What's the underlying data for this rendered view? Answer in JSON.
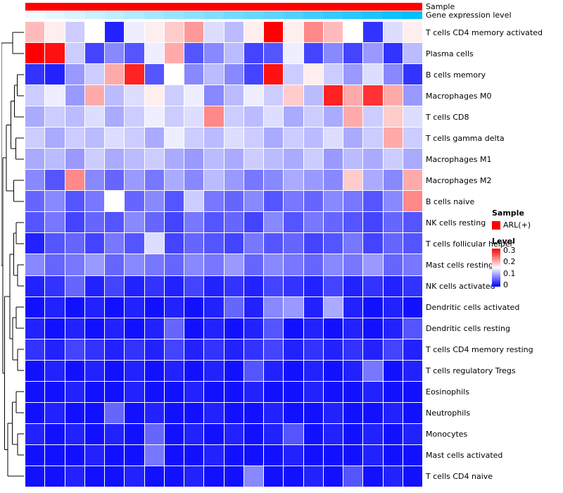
{
  "annotations": {
    "sample": {
      "label": "Sample",
      "value": "ARL(+)",
      "color": "#FE0000",
      "cells": 20
    },
    "expression": {
      "label": "Gene expression level",
      "low_color": "#F2FAFF",
      "high_color": "#00BFFF",
      "values": [
        0,
        0.05,
        0.1,
        0.16,
        0.21,
        0.26,
        0.32,
        0.37,
        0.42,
        0.47,
        0.53,
        0.58,
        0.63,
        0.68,
        0.74,
        0.79,
        0.84,
        0.89,
        0.95,
        1
      ]
    }
  },
  "chart_data": {
    "type": "heatmap",
    "title": "",
    "columns": 20,
    "rows": [
      "T cells CD4 memory activated",
      "Plasma cells",
      "B cells memory",
      "Macrophages M0",
      "T cells CD8",
      "T cells gamma delta",
      "Macrophages M1",
      "Macrophages M2",
      "B cells naive",
      "NK cells resting",
      "T cells follicular helper",
      "Mast cells resting",
      "NK cells activated",
      "Dendritic cells activated",
      "Dendritic cells resting",
      "T cells CD4 memory resting",
      "T cells regulatory  Tregs",
      "Eosinophils",
      "Neutrophils",
      "Monocytes",
      "Mast cells activated",
      "T cells CD4 naive"
    ],
    "values": [
      [
        0.19,
        0.16,
        0.12,
        0.15,
        0.02,
        0.14,
        0.16,
        0.18,
        0.21,
        0.13,
        0.11,
        0.16,
        0.3,
        0.16,
        0.22,
        0.19,
        0.15,
        0.03,
        0.13,
        0.16
      ],
      [
        0.3,
        0.29,
        0.12,
        0.04,
        0.08,
        0.05,
        0.14,
        0.2,
        0.05,
        0.08,
        0.11,
        0.04,
        0.05,
        0.14,
        0.04,
        0.08,
        0.04,
        0.09,
        0.03,
        0.11
      ],
      [
        0.03,
        0.02,
        0.09,
        0.12,
        0.2,
        0.28,
        0.05,
        0.15,
        0.08,
        0.11,
        0.08,
        0.04,
        0.29,
        0.12,
        0.16,
        0.12,
        0.09,
        0.13,
        0.08,
        0.03
      ],
      [
        0.12,
        0.14,
        0.09,
        0.2,
        0.11,
        0.13,
        0.16,
        0.12,
        0.14,
        0.08,
        0.11,
        0.14,
        0.12,
        0.18,
        0.11,
        0.28,
        0.2,
        0.27,
        0.2,
        0.09
      ],
      [
        0.1,
        0.12,
        0.11,
        0.13,
        0.1,
        0.12,
        0.14,
        0.12,
        0.13,
        0.22,
        0.12,
        0.11,
        0.13,
        0.1,
        0.12,
        0.1,
        0.2,
        0.12,
        0.18,
        0.13
      ],
      [
        0.12,
        0.1,
        0.12,
        0.11,
        0.13,
        0.12,
        0.1,
        0.14,
        0.12,
        0.11,
        0.13,
        0.12,
        0.1,
        0.12,
        0.11,
        0.13,
        0.1,
        0.12,
        0.2,
        0.12
      ],
      [
        0.1,
        0.11,
        0.09,
        0.12,
        0.1,
        0.11,
        0.12,
        0.1,
        0.09,
        0.11,
        0.1,
        0.12,
        0.11,
        0.1,
        0.12,
        0.09,
        0.11,
        0.1,
        0.12,
        0.1
      ],
      [
        0.08,
        0.05,
        0.22,
        0.08,
        0.06,
        0.09,
        0.07,
        0.1,
        0.08,
        0.11,
        0.09,
        0.07,
        0.08,
        0.1,
        0.09,
        0.08,
        0.18,
        0.1,
        0.08,
        0.2
      ],
      [
        0.06,
        0.08,
        0.05,
        0.07,
        0.15,
        0.06,
        0.08,
        0.05,
        0.12,
        0.07,
        0.06,
        0.08,
        0.05,
        0.07,
        0.06,
        0.08,
        0.07,
        0.05,
        0.08,
        0.22
      ],
      [
        0.05,
        0.07,
        0.04,
        0.06,
        0.05,
        0.08,
        0.06,
        0.04,
        0.07,
        0.05,
        0.06,
        0.04,
        0.08,
        0.05,
        0.07,
        0.06,
        0.05,
        0.04,
        0.06,
        0.05
      ],
      [
        0.02,
        0.05,
        0.06,
        0.04,
        0.07,
        0.05,
        0.13,
        0.04,
        0.06,
        0.05,
        0.04,
        0.07,
        0.05,
        0.06,
        0.04,
        0.05,
        0.07,
        0.04,
        0.06,
        0.05
      ],
      [
        0.08,
        0.06,
        0.07,
        0.09,
        0.06,
        0.08,
        0.07,
        0.06,
        0.08,
        0.07,
        0.09,
        0.06,
        0.08,
        0.07,
        0.06,
        0.08,
        0.07,
        0.09,
        0.06,
        0.07
      ],
      [
        0.02,
        0.03,
        0.06,
        0.02,
        0.04,
        0.02,
        0.03,
        0.02,
        0.04,
        0.02,
        0.03,
        0.02,
        0.04,
        0.03,
        0.02,
        0.04,
        0.02,
        0.03,
        0.02,
        0.03
      ],
      [
        0.01,
        0.02,
        0.01,
        0.02,
        0.01,
        0.02,
        0.01,
        0.02,
        0.01,
        0.02,
        0.06,
        0.02,
        0.08,
        0.09,
        0.02,
        0.1,
        0.02,
        0.01,
        0.02,
        0.01
      ],
      [
        0.02,
        0.01,
        0.02,
        0.01,
        0.02,
        0.01,
        0.02,
        0.06,
        0.01,
        0.02,
        0.01,
        0.02,
        0.05,
        0.01,
        0.02,
        0.01,
        0.02,
        0.01,
        0.02,
        0.05
      ],
      [
        0.03,
        0.02,
        0.04,
        0.03,
        0.02,
        0.03,
        0.02,
        0.04,
        0.02,
        0.03,
        0.02,
        0.03,
        0.04,
        0.02,
        0.03,
        0.02,
        0.03,
        0.02,
        0.04,
        0.02
      ],
      [
        0.01,
        0.02,
        0.01,
        0.02,
        0.01,
        0.02,
        0.01,
        0.02,
        0.01,
        0.02,
        0.01,
        0.05,
        0.02,
        0.01,
        0.02,
        0.01,
        0.02,
        0.07,
        0.01,
        0.02
      ],
      [
        0.01,
        0.01,
        0.02,
        0.01,
        0.01,
        0.02,
        0.01,
        0.01,
        0.02,
        0.01,
        0.01,
        0.02,
        0.01,
        0.01,
        0.02,
        0.01,
        0.01,
        0.02,
        0.01,
        0.01
      ],
      [
        0.01,
        0.02,
        0.01,
        0.01,
        0.06,
        0.01,
        0.02,
        0.01,
        0.01,
        0.02,
        0.01,
        0.01,
        0.02,
        0.01,
        0.01,
        0.02,
        0.01,
        0.01,
        0.02,
        0.01
      ],
      [
        0.02,
        0.01,
        0.02,
        0.01,
        0.02,
        0.01,
        0.06,
        0.01,
        0.02,
        0.01,
        0.02,
        0.01,
        0.02,
        0.05,
        0.01,
        0.02,
        0.01,
        0.02,
        0.01,
        0.02
      ],
      [
        0.01,
        0.01,
        0.01,
        0.02,
        0.01,
        0.01,
        0.07,
        0.01,
        0.01,
        0.02,
        0.01,
        0.01,
        0.01,
        0.02,
        0.01,
        0.01,
        0.01,
        0.02,
        0.01,
        0.01
      ],
      [
        0.01,
        0.01,
        0.02,
        0.01,
        0.01,
        0.02,
        0.01,
        0.01,
        0.02,
        0.01,
        0.01,
        0.08,
        0.01,
        0.01,
        0.02,
        0.01,
        0.05,
        0.01,
        0.02,
        0.01
      ]
    ],
    "colormap": {
      "min": 0,
      "mid": 0.15,
      "max": 0.3,
      "min_color": "#0000FF",
      "mid_color": "#FFFFFF",
      "max_color": "#FF0000"
    },
    "legend_position": "right",
    "grid": false
  },
  "legends": {
    "sample": {
      "title": "Sample",
      "entries": [
        {
          "label": "ARL(+)",
          "color": "#FE0000"
        }
      ]
    },
    "level": {
      "title": "Level",
      "ticks": [
        "0.3",
        "0.2",
        "0.1",
        "0"
      ],
      "max": 0.3,
      "min": 0
    }
  },
  "dendrogram": {
    "tree": {
      "h": 1.0,
      "c": [
        {
          "h": 0.5,
          "c": [
            {
              "leaf": 0
            },
            {
              "leaf": 1
            }
          ]
        },
        {
          "h": 0.93,
          "c": [
            {
              "h": 0.78,
              "c": [
                {
                  "h": 0.58,
                  "c": [
                    {
                      "h": 0.42,
                      "c": [
                        {
                          "h": 0.3,
                          "c": [
                            {
                              "leaf": 2
                            },
                            {
                              "leaf": 3
                            }
                          ]
                        },
                        {
                          "leaf": 4
                        }
                      ]
                    },
                    {
                      "h": 0.36,
                      "c": [
                        {
                          "leaf": 5
                        },
                        {
                          "leaf": 6
                        }
                      ]
                    }
                  ]
                },
                {
                  "h": 0.46,
                  "c": [
                    {
                      "leaf": 7
                    },
                    {
                      "leaf": 8
                    }
                  ]
                }
              ]
            },
            {
              "h": 0.86,
              "c": [
                {
                  "h": 0.62,
                  "c": [
                    {
                      "h": 0.46,
                      "c": [
                        {
                          "h": 0.34,
                          "c": [
                            {
                              "leaf": 9
                            },
                            {
                              "leaf": 10
                            }
                          ]
                        },
                        {
                          "h": 0.28,
                          "c": [
                            {
                              "leaf": 11
                            },
                            {
                              "leaf": 12
                            }
                          ]
                        }
                      ]
                    },
                    {
                      "h": 0.5,
                      "c": [
                        {
                          "h": 0.34,
                          "c": [
                            {
                              "leaf": 13
                            },
                            {
                              "leaf": 14
                            }
                          ]
                        },
                        {
                          "h": 0.28,
                          "c": [
                            {
                              "leaf": 15
                            },
                            {
                              "leaf": 16
                            }
                          ]
                        }
                      ]
                    }
                  ]
                },
                {
                  "h": 0.72,
                  "c": [
                    {
                      "h": 0.52,
                      "c": [
                        {
                          "h": 0.34,
                          "c": [
                            {
                              "leaf": 17
                            },
                            {
                              "leaf": 18
                            }
                          ]
                        },
                        {
                          "h": 0.28,
                          "c": [
                            {
                              "leaf": 19
                            },
                            {
                              "leaf": 20
                            }
                          ]
                        }
                      ]
                    },
                    {
                      "leaf": 21
                    }
                  ]
                }
              ]
            }
          ]
        }
      ]
    }
  }
}
